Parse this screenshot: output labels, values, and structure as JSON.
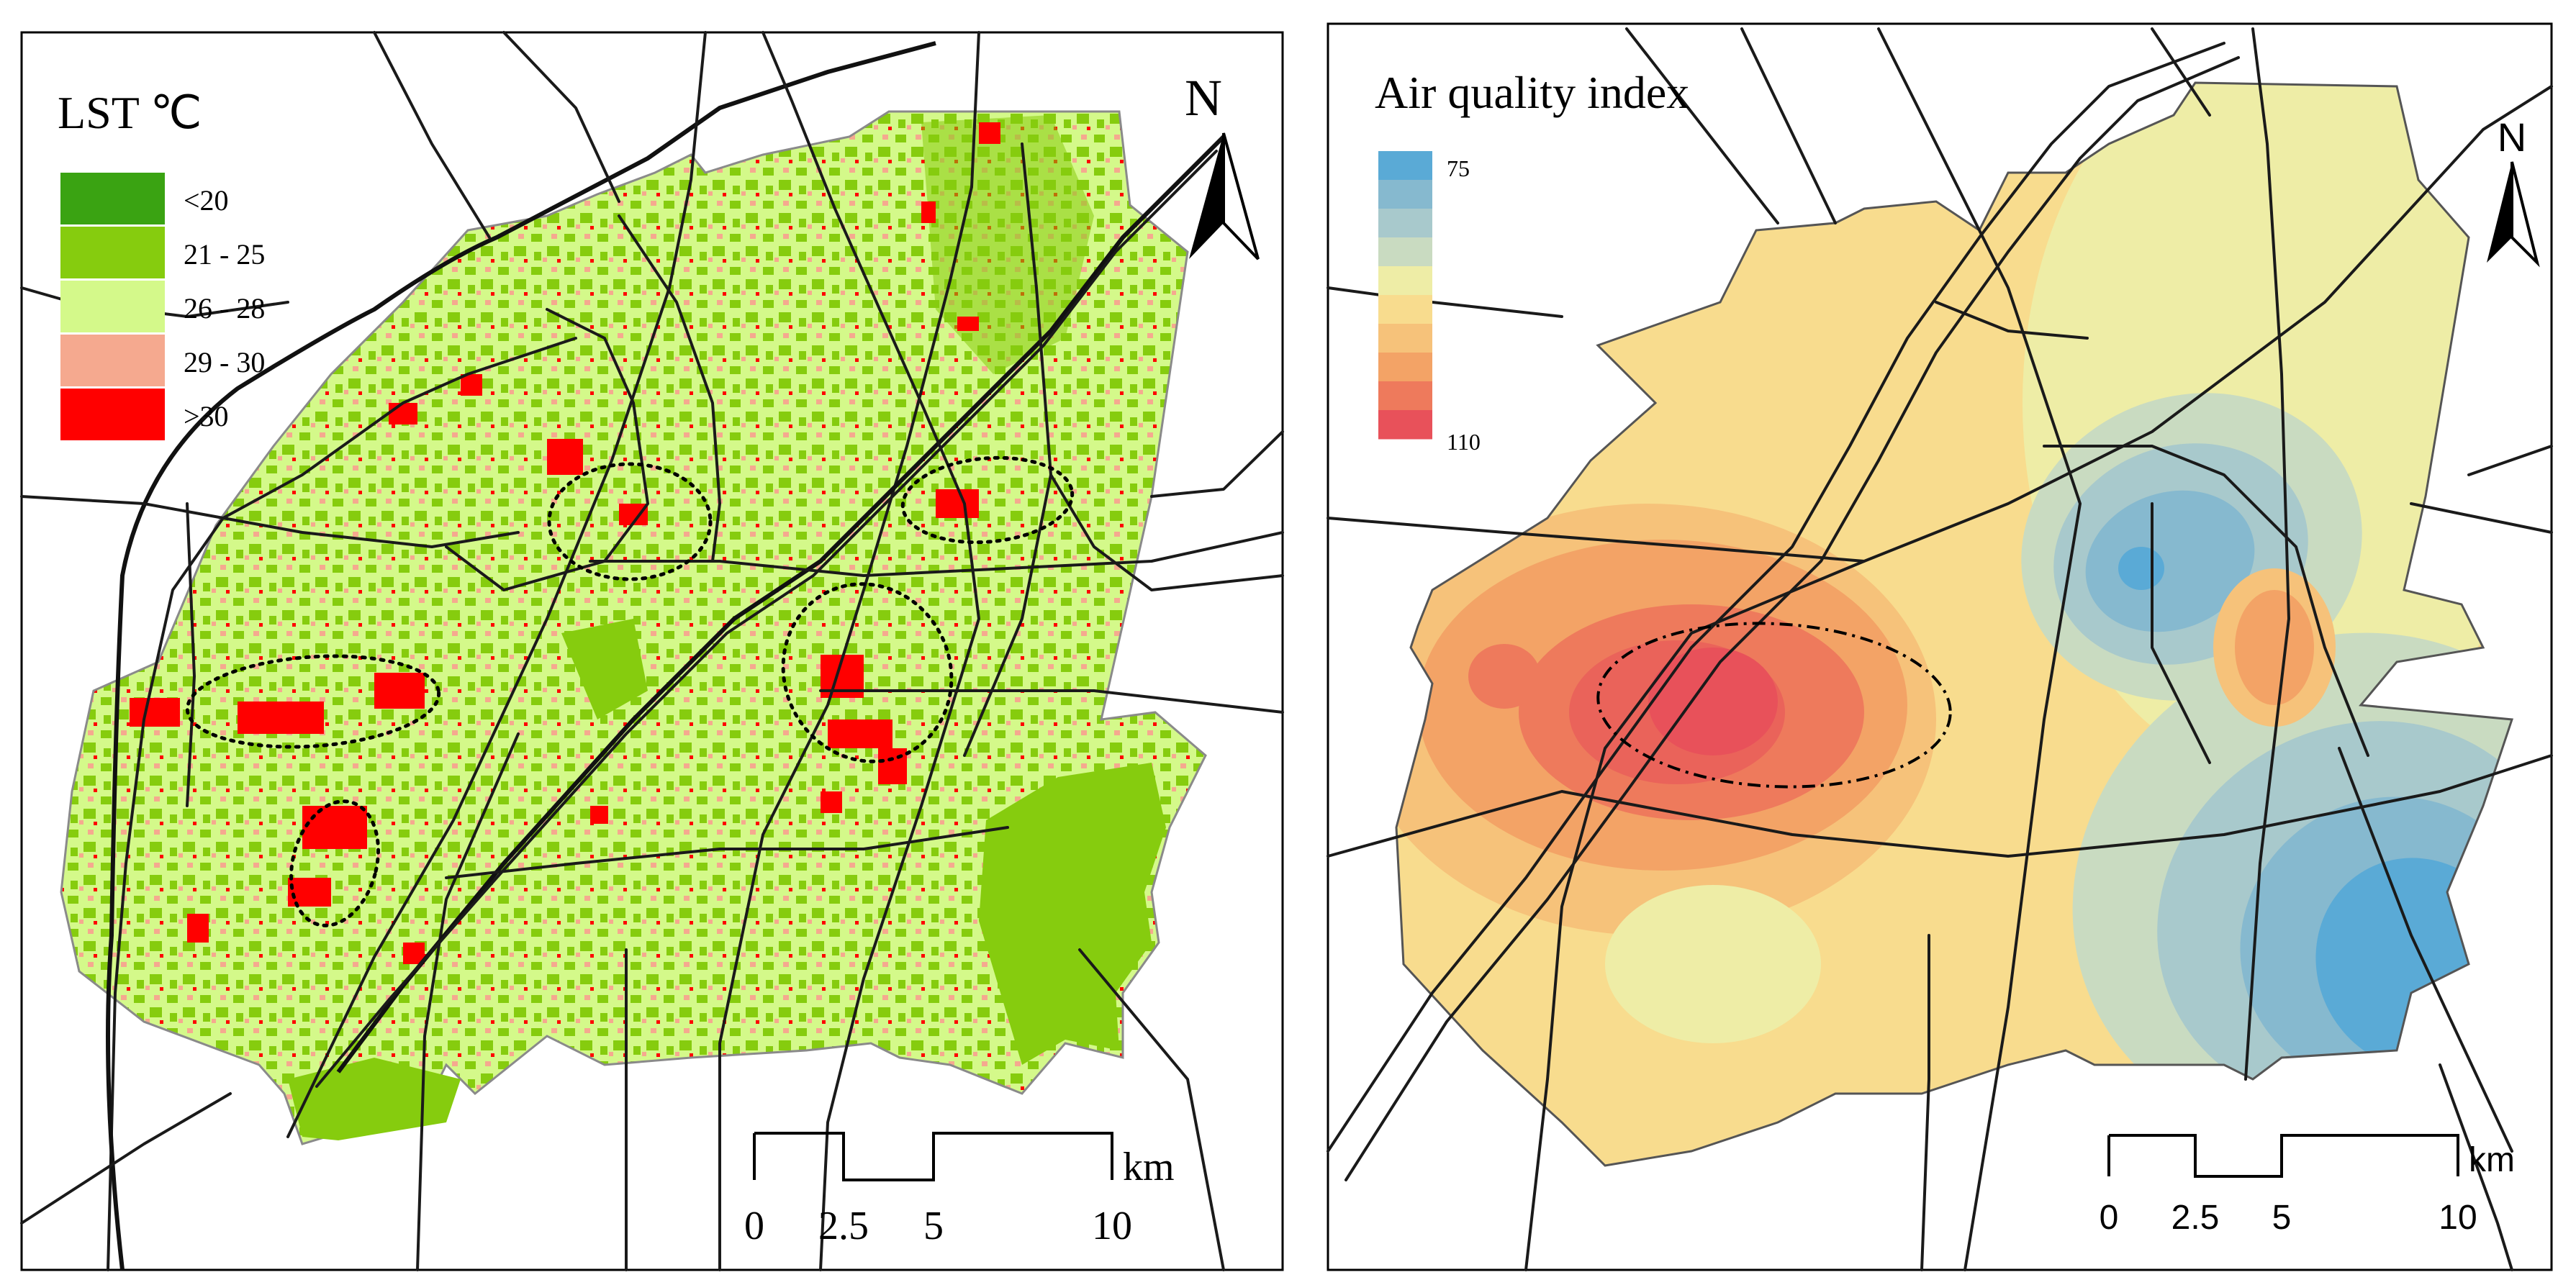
{
  "lst_map": {
    "legend_title": "LST ℃",
    "classes": [
      {
        "label": "<20",
        "color": "#3aa312"
      },
      {
        "label": "21 - 25",
        "color": "#86cc0e"
      },
      {
        "label": "26 - 28",
        "color": "#d4f98a"
      },
      {
        "label": "29 - 30",
        "color": "#f5a98f"
      },
      {
        "label": ">30",
        "color": "#ff0000"
      }
    ],
    "north_label": "N",
    "scale_bar": {
      "unit": "km",
      "ticks": [
        "0",
        "2.5",
        "5",
        "10"
      ]
    }
  },
  "aqi_map": {
    "legend_title": "Air quality index",
    "legend_min": "75",
    "legend_max": "110",
    "ramp_colors": [
      "#5aaad6",
      "#86b9cf",
      "#a8c9cc",
      "#c9dbc1",
      "#eeeda6",
      "#f8dc8e",
      "#f6c27a",
      "#f3a366",
      "#ee7a5c",
      "#e8515a"
    ],
    "north_label": "N",
    "scale_bar": {
      "unit": "km",
      "ticks": [
        "0",
        "2.5",
        "5",
        "10"
      ]
    }
  }
}
